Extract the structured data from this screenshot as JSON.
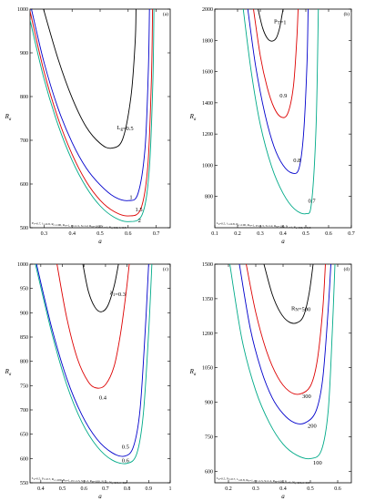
{
  "chart_data": [
    {
      "type": "line",
      "panel_label": "(a)",
      "xlabel": "a",
      "ylabel": "R",
      "ylabel_sub": "a",
      "xlim": [
        0.25,
        0.75
      ],
      "ylim": [
        500,
        1000
      ],
      "xticks": [
        0.3,
        0.4,
        0.5,
        0.6,
        0.7
      ],
      "xtick_labels": [
        "0.3",
        "0.4",
        "0.5",
        "0.6",
        "0.7"
      ],
      "yticks": [
        500,
        600,
        700,
        800,
        900,
        1000
      ],
      "ytick_labels": [
        "500",
        "600",
        "700",
        "800",
        "900",
        "1000"
      ],
      "caption": "P_T=0.7, λ_1=0.8, R_C=100, R_N=1, p_T=1.5, S=1.2, R_M=100, N_c=1, N_q=0.5, λ=0.5",
      "series": [
        {
          "name": "L_g=0.5",
          "color": "#000000",
          "x": [
            0.298,
            0.35,
            0.4,
            0.45,
            0.5,
            0.54,
            0.58,
            0.61,
            0.625,
            0.628
          ],
          "y": [
            1000,
            886,
            797,
            731,
            693,
            682,
            702,
            800,
            925,
            1000
          ]
        },
        {
          "name": "1",
          "color": "#0000cc",
          "x": [
            0.255,
            0.3,
            0.35,
            0.4,
            0.45,
            0.5,
            0.55,
            0.6,
            0.635,
            0.66,
            0.672,
            0.676
          ],
          "y": [
            1000,
            878,
            773,
            695,
            637,
            598,
            571,
            562,
            578,
            680,
            860,
            1000
          ]
        },
        {
          "name": "1.5",
          "color": "#dd0000",
          "x": [
            0.25,
            0.3,
            0.35,
            0.4,
            0.45,
            0.5,
            0.55,
            0.6,
            0.645,
            0.67,
            0.683,
            0.687
          ],
          "y": [
            995,
            857,
            750,
            668,
            606,
            563,
            537,
            527,
            543,
            640,
            840,
            1000
          ]
        },
        {
          "name": "2",
          "color": "#00aa88",
          "x": [
            0.25,
            0.3,
            0.35,
            0.4,
            0.45,
            0.5,
            0.55,
            0.6,
            0.65,
            0.675,
            0.688,
            0.692
          ],
          "y": [
            975,
            840,
            735,
            654,
            593,
            550,
            524,
            514,
            530,
            630,
            830,
            1000
          ]
        }
      ],
      "annotations": [
        {
          "text": "L_g=0.5",
          "x": 0.56,
          "y": 725
        },
        {
          "text": "1",
          "x": 0.605,
          "y": 566
        },
        {
          "text": "1.5",
          "x": 0.625,
          "y": 538
        },
        {
          "text": "2",
          "x": 0.635,
          "y": 512
        }
      ]
    },
    {
      "type": "line",
      "panel_label": "(b)",
      "xlabel": "a",
      "ylabel": "R",
      "ylabel_sub": "a",
      "xlim": [
        0.1,
        0.7
      ],
      "ylim": [
        600,
        2000
      ],
      "xticks": [
        0.1,
        0.2,
        0.3,
        0.4,
        0.5,
        0.6,
        0.7
      ],
      "xtick_labels": [
        "0.1",
        "0.2",
        "0.3",
        "0.4",
        "0.5",
        "0.6",
        "0.7"
      ],
      "yticks": [
        800,
        1000,
        1200,
        1400,
        1600,
        1800,
        2000
      ],
      "ytick_labels": [
        "800",
        "1000",
        "1200",
        "1400",
        "1600",
        "1800",
        "2000"
      ],
      "caption": "L_g=0.5, λ_1=0.8, R_C=100, R_N=1, p_T=1.5, S=1.2, R_M=100, N_c=1, N_q=0.5, λ=0.5",
      "series": [
        {
          "name": "P_T=1",
          "color": "#000000",
          "x": [
            0.29,
            0.31,
            0.33,
            0.35,
            0.37,
            0.385,
            0.395,
            0.4
          ],
          "y": [
            2000,
            1880,
            1815,
            1795,
            1815,
            1880,
            1960,
            2000
          ]
        },
        {
          "name": "0.9",
          "color": "#dd0000",
          "x": [
            0.27,
            0.3,
            0.33,
            0.36,
            0.39,
            0.42,
            0.445,
            0.46,
            0.466
          ],
          "y": [
            2000,
            1700,
            1500,
            1370,
            1310,
            1330,
            1500,
            1800,
            2000
          ]
        },
        {
          "name": "0.8",
          "color": "#0000cc",
          "x": [
            0.245,
            0.28,
            0.32,
            0.36,
            0.4,
            0.44,
            0.47,
            0.49,
            0.505,
            0.51
          ],
          "y": [
            2000,
            1630,
            1330,
            1120,
            1000,
            950,
            980,
            1200,
            1650,
            2000
          ]
        },
        {
          "name": "0.7",
          "color": "#00aa88",
          "x": [
            0.225,
            0.26,
            0.3,
            0.35,
            0.4,
            0.45,
            0.5,
            0.525,
            0.545,
            0.555
          ],
          "y": [
            2000,
            1600,
            1260,
            990,
            820,
            720,
            690,
            760,
            1250,
            2000
          ]
        }
      ],
      "annotations": [
        {
          "text": "P_T=1",
          "x": 0.36,
          "y": 1910
        },
        {
          "text": "0.9",
          "x": 0.385,
          "y": 1435
        },
        {
          "text": "0.8",
          "x": 0.445,
          "y": 1020
        },
        {
          "text": "0.7",
          "x": 0.51,
          "y": 760
        }
      ]
    },
    {
      "type": "line",
      "panel_label": "(c)",
      "xlabel": "a",
      "ylabel": "R",
      "ylabel_sub": "a",
      "xlim": [
        0.35,
        1.0
      ],
      "ylim": [
        550,
        1000
      ],
      "xticks": [
        0.4,
        0.5,
        0.6,
        0.7,
        0.8,
        0.9,
        1.0
      ],
      "xtick_labels": [
        "0.4",
        "0.5",
        "0.6",
        "0.7",
        "0.8",
        "0.9",
        "1"
      ],
      "yticks": [
        550,
        600,
        650,
        700,
        750,
        800,
        850,
        900,
        950,
        1000
      ],
      "ytick_labels": [
        "550",
        "600",
        "650",
        "700",
        "750",
        "800",
        "850",
        "900",
        "950",
        "1000"
      ],
      "caption": "L_g=0.5, P_T=0.7, R_C=100, R_N=1, p_T=1.5, S=1.2, R_M=100, N_c=1, N_q=0.5, λ=0.2",
      "series": [
        {
          "name": "λ_1=0.3",
          "color": "#000000",
          "x": [
            0.595,
            0.62,
            0.65,
            0.68,
            0.71,
            0.74,
            0.76
          ],
          "y": [
            1000,
            945,
            912,
            902,
            914,
            955,
            1000
          ]
        },
        {
          "name": "0.4",
          "color": "#dd0000",
          "x": [
            0.475,
            0.52,
            0.57,
            0.62,
            0.66,
            0.7,
            0.74,
            0.77,
            0.795,
            0.81
          ],
          "y": [
            1000,
            890,
            805,
            758,
            745,
            752,
            790,
            858,
            940,
            1000
          ]
        },
        {
          "name": "0.5",
          "color": "#0000cc",
          "x": [
            0.38,
            0.45,
            0.52,
            0.59,
            0.66,
            0.73,
            0.79,
            0.83,
            0.86,
            0.885,
            0.9
          ],
          "y": [
            1000,
            870,
            765,
            690,
            640,
            612,
            605,
            625,
            700,
            870,
            1000
          ]
        },
        {
          "name": "0.6",
          "color": "#00aa88",
          "x": [
            0.375,
            0.45,
            0.52,
            0.59,
            0.66,
            0.73,
            0.8,
            0.845,
            0.875,
            0.9,
            0.915
          ],
          "y": [
            1000,
            860,
            752,
            675,
            625,
            597,
            590,
            610,
            690,
            860,
            1000
          ]
        }
      ],
      "annotations": [
        {
          "text": "λ_1=0.3",
          "x": 0.72,
          "y": 937
        },
        {
          "text": "0.4",
          "x": 0.67,
          "y": 722
        },
        {
          "text": "0.5",
          "x": 0.775,
          "y": 620
        },
        {
          "text": "0.6",
          "x": 0.775,
          "y": 592
        }
      ]
    },
    {
      "type": "line",
      "panel_label": "(d)",
      "xlabel": "a",
      "ylabel": "R",
      "ylabel_sub": "a",
      "xlim": [
        0.15,
        0.65
      ],
      "ylim": [
        550,
        1500
      ],
      "xticks": [
        0.2,
        0.3,
        0.4,
        0.5,
        0.6
      ],
      "xtick_labels": [
        "0.2",
        "0.3",
        "0.4",
        "0.5",
        "0.6"
      ],
      "yticks": [
        600,
        750,
        900,
        1050,
        1200,
        1350,
        1500
      ],
      "ytick_labels": [
        "600",
        "750",
        "900",
        "1050",
        "1200",
        "1350",
        "1500"
      ],
      "caption": "L_g=0.5, P_T=0.7, λ_1=0.8, R_N=1, p_T=1.5, S=1.2, R_M=100, N_c=1, N_q=0.5, λ=0.5",
      "series": [
        {
          "name": "R_N=500",
          "color": "#000000",
          "x": [
            0.33,
            0.36,
            0.39,
            0.42,
            0.45,
            0.475,
            0.495,
            0.51
          ],
          "y": [
            1500,
            1370,
            1290,
            1250,
            1245,
            1275,
            1370,
            1500
          ]
        },
        {
          "name": "300",
          "color": "#dd0000",
          "x": [
            0.265,
            0.3,
            0.34,
            0.38,
            0.42,
            0.46,
            0.5,
            0.525,
            0.545,
            0.555
          ],
          "y": [
            1500,
            1290,
            1120,
            1010,
            950,
            935,
            970,
            1080,
            1300,
            1500
          ]
        },
        {
          "name": "200",
          "color": "#0000cc",
          "x": [
            0.24,
            0.28,
            0.32,
            0.36,
            0.4,
            0.44,
            0.48,
            0.52,
            0.545,
            0.565,
            0.575
          ],
          "y": [
            1500,
            1220,
            1040,
            920,
            850,
            812,
            810,
            860,
            1000,
            1300,
            1500
          ]
        },
        {
          "name": "100",
          "color": "#00aa88",
          "x": [
            0.205,
            0.25,
            0.3,
            0.35,
            0.4,
            0.45,
            0.5,
            0.54,
            0.565,
            0.58,
            0.59
          ],
          "y": [
            1500,
            1170,
            950,
            810,
            718,
            670,
            655,
            690,
            860,
            1200,
            1500
          ]
        }
      ],
      "annotations": [
        {
          "text": "R_N=500",
          "x": 0.43,
          "y": 1300
        },
        {
          "text": "300",
          "x": 0.47,
          "y": 918
        },
        {
          "text": "200",
          "x": 0.49,
          "y": 790
        },
        {
          "text": "100",
          "x": 0.51,
          "y": 630
        }
      ]
    }
  ]
}
